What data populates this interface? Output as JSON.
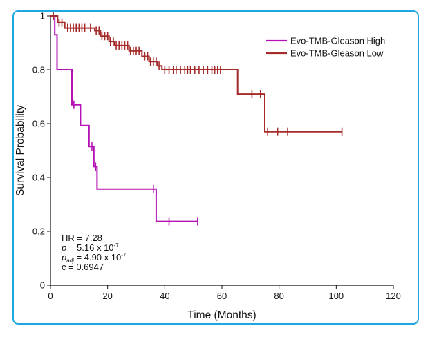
{
  "chart_data": {
    "type": "line",
    "subtype": "kaplan-meier",
    "title": "",
    "xlabel": "Time (Months)",
    "ylabel": "Survival Probability",
    "xlim": [
      0,
      120
    ],
    "ylim": [
      0,
      1
    ],
    "xticks": [
      0,
      20,
      40,
      60,
      80,
      100,
      120
    ],
    "yticks": [
      0,
      0.2,
      0.4,
      0.6,
      0.8,
      1
    ],
    "ytick_labels": [
      "0",
      "0.2",
      "0.4",
      "0.6",
      "0.8",
      "1"
    ],
    "grid": false,
    "legend_position": "top-right",
    "series": [
      {
        "name": "Evo-TMB-Gleason High",
        "color": "#b512b5",
        "steps": [
          [
            0,
            1.0
          ],
          [
            1.5,
            1.0
          ],
          [
            1.5,
            0.93
          ],
          [
            2.3,
            0.93
          ],
          [
            2.3,
            0.8
          ],
          [
            7.5,
            0.8
          ],
          [
            7.5,
            0.67
          ],
          [
            10.5,
            0.67
          ],
          [
            10.5,
            0.593
          ],
          [
            13.5,
            0.593
          ],
          [
            13.5,
            0.515
          ],
          [
            15.2,
            0.515
          ],
          [
            15.2,
            0.44
          ],
          [
            16.3,
            0.44
          ],
          [
            16.3,
            0.357
          ],
          [
            37.0,
            0.357
          ],
          [
            37.0,
            0.237
          ],
          [
            51.5,
            0.237
          ]
        ],
        "censored": [
          [
            8.2,
            0.67
          ],
          [
            14.5,
            0.515
          ],
          [
            15.8,
            0.44
          ],
          [
            36.0,
            0.357
          ],
          [
            41.5,
            0.237
          ],
          [
            51.5,
            0.237
          ]
        ]
      },
      {
        "name": "Evo-TMB-Gleason Low",
        "color": "#a52a2a",
        "steps": [
          [
            0,
            1.0
          ],
          [
            2.5,
            1.0
          ],
          [
            2.5,
            0.975
          ],
          [
            5.0,
            0.975
          ],
          [
            5.0,
            0.955
          ],
          [
            15.5,
            0.955
          ],
          [
            15.5,
            0.945
          ],
          [
            17.5,
            0.945
          ],
          [
            17.5,
            0.925
          ],
          [
            20.5,
            0.925
          ],
          [
            20.5,
            0.905
          ],
          [
            22.5,
            0.905
          ],
          [
            22.5,
            0.89
          ],
          [
            27.5,
            0.89
          ],
          [
            27.5,
            0.87
          ],
          [
            32.0,
            0.87
          ],
          [
            32.0,
            0.85
          ],
          [
            34.5,
            0.85
          ],
          [
            34.5,
            0.83
          ],
          [
            37.5,
            0.83
          ],
          [
            37.5,
            0.815
          ],
          [
            39.0,
            0.815
          ],
          [
            39.0,
            0.8
          ],
          [
            65.5,
            0.8
          ],
          [
            65.5,
            0.71
          ],
          [
            75.0,
            0.71
          ],
          [
            75.0,
            0.57
          ],
          [
            102.0,
            0.57
          ]
        ],
        "censored": [
          [
            1.0,
            1.0
          ],
          [
            3.0,
            0.975
          ],
          [
            4.0,
            0.975
          ],
          [
            6.0,
            0.955
          ],
          [
            7.0,
            0.955
          ],
          [
            8.0,
            0.955
          ],
          [
            9.0,
            0.955
          ],
          [
            10.0,
            0.955
          ],
          [
            11.0,
            0.955
          ],
          [
            12.0,
            0.955
          ],
          [
            14.0,
            0.955
          ],
          [
            16.0,
            0.945
          ],
          [
            17.0,
            0.945
          ],
          [
            18.0,
            0.925
          ],
          [
            19.0,
            0.925
          ],
          [
            20.0,
            0.925
          ],
          [
            21.0,
            0.905
          ],
          [
            22.0,
            0.905
          ],
          [
            23.0,
            0.89
          ],
          [
            24.0,
            0.89
          ],
          [
            25.0,
            0.89
          ],
          [
            26.0,
            0.89
          ],
          [
            27.0,
            0.89
          ],
          [
            28.0,
            0.87
          ],
          [
            29.0,
            0.87
          ],
          [
            30.0,
            0.87
          ],
          [
            31.0,
            0.87
          ],
          [
            33.0,
            0.85
          ],
          [
            34.0,
            0.85
          ],
          [
            35.0,
            0.83
          ],
          [
            36.0,
            0.83
          ],
          [
            37.0,
            0.83
          ],
          [
            38.0,
            0.815
          ],
          [
            40.0,
            0.8
          ],
          [
            41.5,
            0.8
          ],
          [
            43.0,
            0.8
          ],
          [
            44.0,
            0.8
          ],
          [
            45.5,
            0.8
          ],
          [
            47.0,
            0.8
          ],
          [
            48.0,
            0.8
          ],
          [
            49.0,
            0.8
          ],
          [
            50.5,
            0.8
          ],
          [
            52.0,
            0.8
          ],
          [
            53.5,
            0.8
          ],
          [
            55.0,
            0.8
          ],
          [
            56.5,
            0.8
          ],
          [
            57.5,
            0.8
          ],
          [
            58.5,
            0.8
          ],
          [
            59.5,
            0.8
          ],
          [
            70.5,
            0.71
          ],
          [
            73.5,
            0.71
          ],
          [
            76.0,
            0.57
          ],
          [
            79.5,
            0.57
          ],
          [
            83.0,
            0.57
          ],
          [
            102.0,
            0.57
          ]
        ]
      }
    ],
    "annotations": {
      "hr": "HR = 7.28",
      "p_sym": "p",
      "p_val": " = 5.16 x 10",
      "p_exp": "-7",
      "padj_sym": "p",
      "padj_sub": "adj",
      "padj_val": " = 4.90 x 10",
      "padj_exp": "-7",
      "c_index": "c = 0.6947"
    }
  }
}
